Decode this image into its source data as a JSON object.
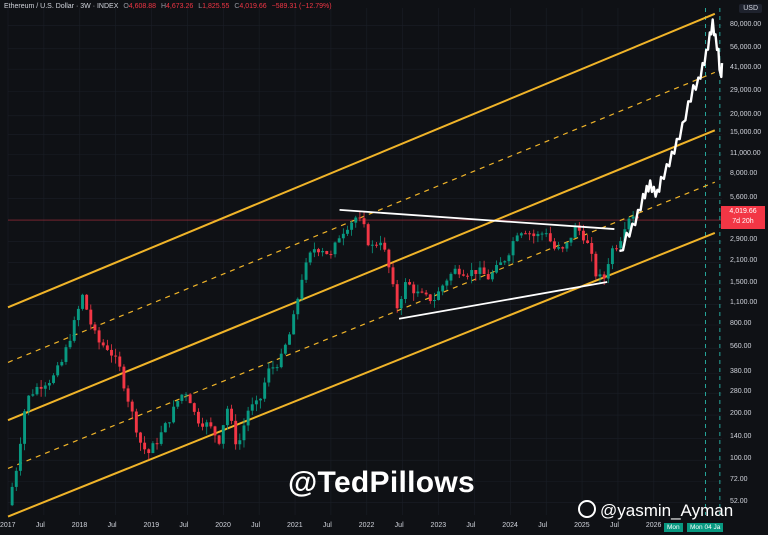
{
  "header": {
    "title": "Ethereum / U.S. Dollar · 3W · INDEX",
    "open_key": "O",
    "open": "4,608.88",
    "high_key": "H",
    "high": "4,673.26",
    "low_key": "L",
    "low": "1,825.55",
    "close_key": "C",
    "close": "4,019.66",
    "change": "−589.31 (−12.79%)"
  },
  "currency": "USD",
  "price_tag": {
    "price": "4,019.66",
    "countdown": "7d 20h"
  },
  "watermarks": {
    "handle1": "@TedPillows",
    "handle2": "@yasmin_Ayman"
  },
  "future_labels": [
    "Mon",
    "Mon 04 Ja"
  ],
  "colors": {
    "background": "#0f1115",
    "up": "#089981",
    "down": "#f23645",
    "channel": "#f0b429",
    "triangle": "#ffffff",
    "projection": "#ffffff",
    "future_line": "#26a69a",
    "price_line": "#f23645"
  },
  "chart_data": {
    "type": "candlestick",
    "y_scale": "log",
    "ylim": [
      43,
      105000
    ],
    "xlim": [
      2017.0,
      2026.95
    ],
    "y_ticks": [
      80000,
      56000,
      41000,
      29000,
      20000,
      15000,
      11000,
      8000,
      5600,
      4019.66,
      2900,
      2100,
      1500,
      1100,
      800,
      560,
      380,
      280,
      200,
      140,
      100,
      72,
      52
    ],
    "y_tick_labels": [
      "80,000.00",
      "56,000.00",
      "41,000.00",
      "29,000.00",
      "20,000.00",
      "15,000.00",
      "11,000.00",
      "8,000.00",
      "5,600.00",
      "",
      "2,900.00",
      "2,100.00",
      "1,500.00",
      "1,100.00",
      "800.00",
      "560.00",
      "380.00",
      "280.00",
      "200.00",
      "140.00",
      "100.00",
      "72.00",
      "52.00"
    ],
    "x_ticks": [
      2017.0,
      2017.5,
      2018.0,
      2018.5,
      2019.0,
      2019.5,
      2020.0,
      2020.5,
      2021.0,
      2021.5,
      2022.0,
      2022.5,
      2023.0,
      2023.5,
      2024.0,
      2024.5,
      2025.0,
      2025.5,
      2026.0
    ],
    "x_tick_labels": [
      "2017",
      "Jul",
      "2018",
      "Jul",
      "2019",
      "Jul",
      "2020",
      "Jul",
      "2021",
      "Jul",
      "2022",
      "Jul",
      "2023",
      "Jul",
      "2024",
      "Jul",
      "2025",
      "Jul",
      "2026"
    ],
    "price_path": [
      [
        2017.0,
        50
      ],
      [
        2017.12,
        90
      ],
      [
        2017.25,
        250
      ],
      [
        2017.38,
        300
      ],
      [
        2017.5,
        330
      ],
      [
        2017.62,
        350
      ],
      [
        2017.75,
        450
      ],
      [
        2017.88,
        700
      ],
      [
        2018.05,
        1300
      ],
      [
        2018.12,
        900
      ],
      [
        2018.25,
        620
      ],
      [
        2018.4,
        560
      ],
      [
        2018.55,
        420
      ],
      [
        2018.7,
        230
      ],
      [
        2018.85,
        130
      ],
      [
        2018.95,
        110
      ],
      [
        2019.1,
        140
      ],
      [
        2019.25,
        190
      ],
      [
        2019.4,
        270
      ],
      [
        2019.5,
        290
      ],
      [
        2019.62,
        190
      ],
      [
        2019.8,
        170
      ],
      [
        2019.95,
        135
      ],
      [
        2020.05,
        230
      ],
      [
        2020.2,
        120
      ],
      [
        2020.35,
        220
      ],
      [
        2020.5,
        240
      ],
      [
        2020.62,
        390
      ],
      [
        2020.8,
        470
      ],
      [
        2020.95,
        750
      ],
      [
        2021.1,
        1700
      ],
      [
        2021.25,
        2600
      ],
      [
        2021.38,
        2600
      ],
      [
        2021.5,
        2300
      ],
      [
        2021.62,
        3200
      ],
      [
        2021.75,
        3800
      ],
      [
        2021.85,
        4200
      ],
      [
        2021.95,
        3700
      ],
      [
        2022.05,
        2600
      ],
      [
        2022.2,
        3000
      ],
      [
        2022.3,
        2000
      ],
      [
        2022.42,
        1050
      ],
      [
        2022.55,
        1550
      ],
      [
        2022.7,
        1300
      ],
      [
        2022.85,
        1200
      ],
      [
        2022.95,
        1200
      ],
      [
        2023.1,
        1600
      ],
      [
        2023.25,
        1900
      ],
      [
        2023.4,
        1800
      ],
      [
        2023.55,
        1850
      ],
      [
        2023.7,
        1650
      ],
      [
        2023.85,
        2000
      ],
      [
        2023.95,
        2300
      ],
      [
        2024.1,
        3400
      ],
      [
        2024.2,
        3500
      ],
      [
        2024.35,
        3100
      ],
      [
        2024.5,
        3400
      ],
      [
        2024.6,
        2600
      ],
      [
        2024.75,
        2500
      ],
      [
        2024.9,
        3600
      ],
      [
        2025.0,
        3300
      ],
      [
        2025.1,
        2600
      ],
      [
        2025.2,
        1700
      ],
      [
        2025.3,
        1600
      ],
      [
        2025.4,
        2500
      ],
      [
        2025.52,
        2900
      ],
      [
        2025.6,
        3800
      ],
      [
        2025.68,
        4500
      ],
      [
        2025.75,
        4300
      ],
      [
        2025.8,
        4019.66
      ]
    ],
    "projection_path": [
      [
        2025.52,
        2500
      ],
      [
        2025.62,
        3300
      ],
      [
        2025.7,
        3800
      ],
      [
        2025.78,
        4700
      ],
      [
        2025.85,
        6000
      ],
      [
        2025.9,
        6800
      ],
      [
        2025.95,
        7400
      ],
      [
        2026.0,
        6700
      ],
      [
        2026.05,
        6400
      ],
      [
        2026.1,
        7800
      ],
      [
        2026.18,
        9500
      ],
      [
        2026.25,
        11500
      ],
      [
        2026.32,
        14000
      ],
      [
        2026.4,
        18000
      ],
      [
        2026.48,
        25000
      ],
      [
        2026.55,
        32000
      ],
      [
        2026.62,
        36000
      ],
      [
        2026.68,
        45000
      ],
      [
        2026.73,
        55000
      ],
      [
        2026.78,
        72000
      ],
      [
        2026.82,
        88000
      ],
      [
        2026.86,
        70000
      ],
      [
        2026.9,
        56000
      ],
      [
        2026.93,
        38000
      ],
      [
        2026.95,
        45000
      ]
    ],
    "channel_solid": [
      [
        [
          2017.0,
          1050
        ],
        [
          2026.85,
          96000
        ]
      ],
      [
        [
          2017.0,
          185
        ],
        [
          2026.85,
          16000
        ]
      ],
      [
        [
          2017.0,
          42
        ],
        [
          2026.85,
          3300
        ]
      ]
    ],
    "channel_dashed": [
      [
        [
          2017.0,
          450
        ],
        [
          2026.85,
          39000
        ]
      ],
      [
        [
          2017.0,
          88
        ],
        [
          2026.85,
          7200
        ]
      ]
    ],
    "triangle": [
      [
        [
          2021.62,
          4700
        ],
        [
          2025.45,
          3500
        ]
      ],
      [
        [
          2022.45,
          880
        ],
        [
          2025.35,
          1550
        ]
      ]
    ],
    "future_lines_x": [
      2026.72,
      2026.92
    ],
    "last_price": 4019.66
  }
}
